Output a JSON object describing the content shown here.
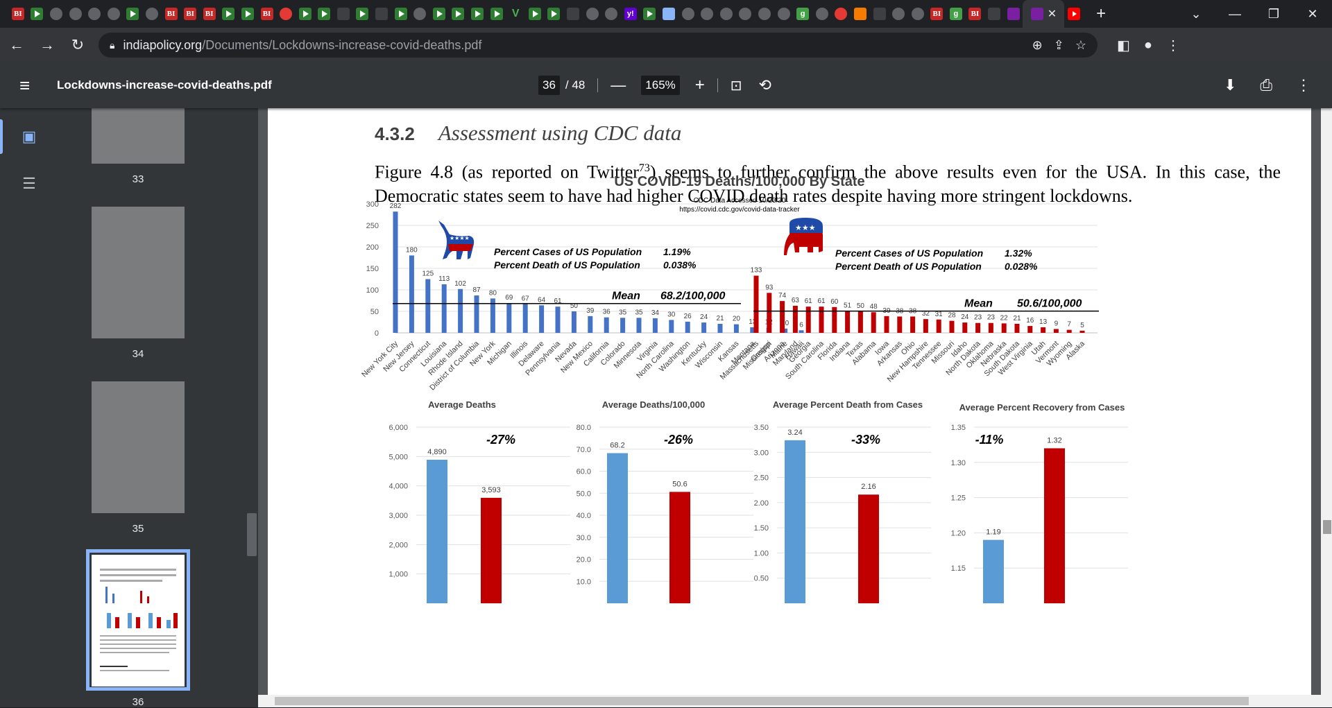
{
  "browser": {
    "tab_icons": [
      "bi",
      "play",
      "globe",
      "globe",
      "globe",
      "globe",
      "play",
      "globe",
      "bi",
      "bi",
      "bi",
      "play",
      "play",
      "bi",
      "cred",
      "play",
      "play",
      "gdark",
      "play",
      "gdark",
      "play",
      "globe",
      "play",
      "play",
      "play",
      "play",
      "vee",
      "play",
      "play",
      "gdark",
      "globe",
      "globe",
      "yahoo",
      "play",
      "ltblue",
      "globe",
      "globe",
      "globe",
      "globe",
      "globe",
      "globe",
      "green",
      "globe",
      "cred",
      "orange",
      "gdark",
      "globe",
      "globe",
      "bi",
      "green",
      "bi",
      "gdark",
      "purple",
      "active",
      "yt"
    ],
    "tab_glyphs": {
      "bi": "BI",
      "play": "",
      "globe": "",
      "gdark": "",
      "yahoo": "y!",
      "green": "g",
      "yt": "",
      "cred": "",
      "orange": "",
      "purple": "",
      "ltblue": "",
      "vee": "V",
      "active": ""
    },
    "address_host": "indiapolicy.org",
    "address_path": "/Documents/Lockdowns-increase-covid-deaths.pdf",
    "lock_icon": "lock-icon"
  },
  "pdf": {
    "title": "Lockdowns-increase-covid-deaths.pdf",
    "current_page": "36",
    "page_total": "/ 48",
    "zoom": "165%",
    "thumbnails": [
      "33",
      "34",
      "35",
      "36"
    ]
  },
  "doc": {
    "section_number": "4.3.2",
    "section_title": "Assessment using CDC data",
    "paragraph_a": "Figure 4.8 (as reported on Twitter",
    "paragraph_sup": "73",
    "paragraph_b": ") seems to further confirm the above results even for the USA. In this case, the Democratic states seem to have had higher COVID death rates despite having more stringent lockdowns."
  },
  "chart_data": [
    {
      "type": "bar",
      "title": "US COVID-19 Deaths/100,000 By State",
      "subtitle": "CDC Data Accessed  10/23/20",
      "source": "https://covid.cdc.gov/covid-data-tracker",
      "ylim": [
        0,
        300
      ],
      "yticks": [
        0,
        50,
        100,
        150,
        200,
        250,
        300
      ],
      "grid": true,
      "series": [
        {
          "name": "Democratic states",
          "color": "#4472c4",
          "categories": [
            "New York City",
            "New Jersey",
            "Connecticut",
            "Louisiana",
            "Rhode Island",
            "District of Columbia",
            "New York",
            "Michigan",
            "Illinois",
            "Delaware",
            "Pennsylvania",
            "Nevada",
            "New Mexico",
            "California",
            "Colorado",
            "Minnesota",
            "Virginia",
            "North Carolina",
            "Washington",
            "Kentucky",
            "Wisconsin",
            "Kansas",
            "Montana",
            "Oregon",
            "Maine",
            "Hawaii"
          ],
          "values": [
            282,
            180,
            125,
            113,
            102,
            87,
            80,
            69,
            67,
            64,
            61,
            50,
            39,
            36,
            35,
            35,
            34,
            30,
            26,
            24,
            21,
            20,
            13,
            12,
            10,
            6
          ],
          "mean": 68.2,
          "mean_label": "Mean",
          "mean_value": "68.2/100,000",
          "cases_label": "Percent Cases of US Population",
          "cases_value": "1.19%",
          "death_label": "Percent Death of US Population",
          "death_value": "0.038%"
        },
        {
          "name": "Republican states",
          "color": "#c00000",
          "categories": [
            "Massachusetts",
            "Mississippi",
            "Arizona",
            "Maryland",
            "Georgia",
            "South Carolina",
            "Florida",
            "Indiana",
            "Texas",
            "Alabama",
            "Iowa",
            "Arkansas",
            "Ohio",
            "New Hampshire",
            "Tennessee",
            "Missouri",
            "Idaho",
            "North Dakota",
            "Oklahoma",
            "Nebraska",
            "South Dakota",
            "West Virginia",
            "Utah",
            "Vermont",
            "Wyoming",
            "Alaska"
          ],
          "values": [
            133,
            93,
            74,
            63,
            61,
            61,
            60,
            51,
            50,
            48,
            39,
            38,
            38,
            32,
            31,
            28,
            24,
            23,
            23,
            22,
            21,
            16,
            13,
            9,
            7,
            5
          ],
          "mean": 50.6,
          "mean_label": "Mean",
          "mean_value": "50.6/100,000",
          "cases_label": "Percent Cases of US Population",
          "cases_value": "1.32%",
          "death_label": "Percent Death of US Population",
          "death_value": "0.028%"
        }
      ]
    },
    {
      "type": "bar",
      "title": "Average Deaths",
      "values": [
        4890,
        3593
      ],
      "labels": [
        "4,890",
        "3,593"
      ],
      "colors": [
        "#5b9bd5",
        "#c00000"
      ],
      "change": "-27%",
      "yticks": [
        1000,
        2000,
        3000,
        4000,
        5000,
        6000
      ],
      "ytick_labels": [
        "1,000",
        "2,000",
        "3,000",
        "4,000",
        "5,000",
        "6,000"
      ],
      "ylim": [
        0,
        6000
      ]
    },
    {
      "type": "bar",
      "title": "Average Deaths/100,000",
      "values": [
        68.2,
        50.6
      ],
      "labels": [
        "68.2",
        "50.6"
      ],
      "colors": [
        "#5b9bd5",
        "#c00000"
      ],
      "change": "-26%",
      "yticks": [
        10,
        20,
        30,
        40,
        50,
        60,
        70,
        80
      ],
      "ytick_labels": [
        "10.0",
        "20.0",
        "30.0",
        "40.0",
        "50.0",
        "60.0",
        "70.0",
        "80.0"
      ],
      "ylim": [
        0,
        80
      ]
    },
    {
      "type": "bar",
      "title": "Average Percent Death from Cases",
      "values": [
        3.24,
        2.16
      ],
      "labels": [
        "3.24",
        "2.16"
      ],
      "colors": [
        "#5b9bd5",
        "#c00000"
      ],
      "change": "-33%",
      "yticks": [
        0.5,
        1,
        1.5,
        2,
        2.5,
        3,
        3.5
      ],
      "ytick_labels": [
        "0.50",
        "1.00",
        "1.50",
        "2.00",
        "2.50",
        "3.00",
        "3.50"
      ],
      "ylim": [
        0,
        3.5
      ]
    },
    {
      "type": "bar",
      "title": "Average Percent Recovery from Cases",
      "values": [
        1.19,
        1.32
      ],
      "labels": [
        "1.19",
        "1.32"
      ],
      "colors": [
        "#5b9bd5",
        "#c00000"
      ],
      "change": "-11%",
      "yticks": [
        1.15,
        1.2,
        1.25,
        1.3,
        1.35
      ],
      "ytick_labels": [
        "1.15",
        "1.20",
        "1.25",
        "1.30",
        "1.35"
      ],
      "ylim": [
        1.1,
        1.35
      ]
    }
  ]
}
